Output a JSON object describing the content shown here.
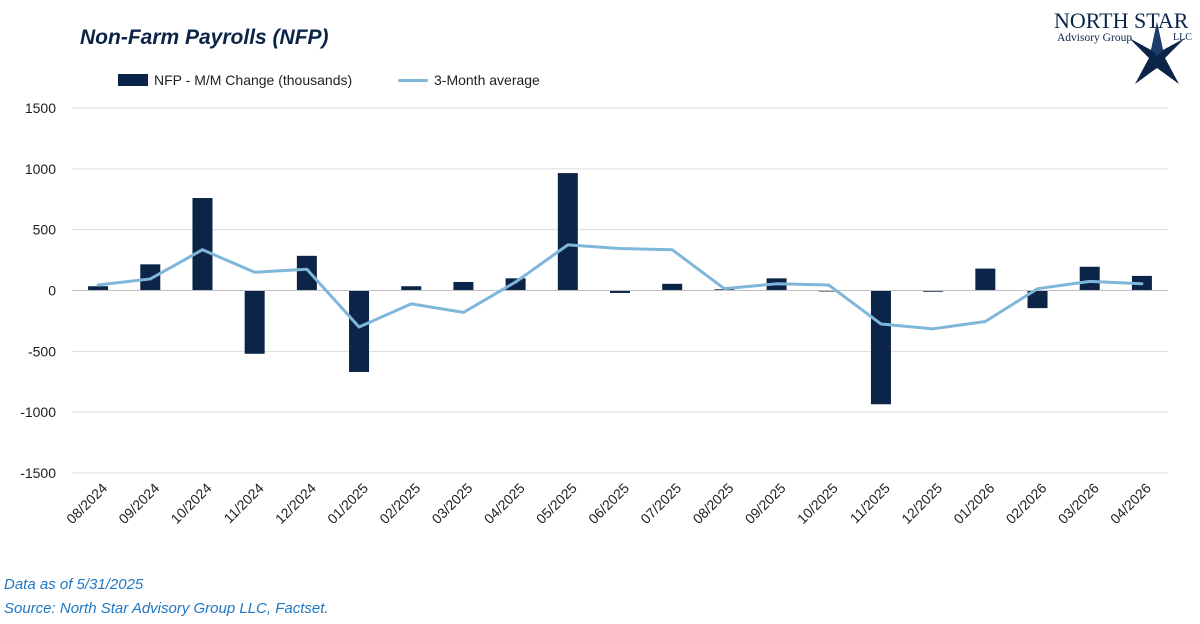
{
  "chart_data": {
    "type": "bar",
    "title": "Non-Farm Payrolls (NFP)",
    "categories": [
      "08/2024",
      "09/2024",
      "10/2024",
      "11/2024",
      "12/2024",
      "01/2025",
      "02/2025",
      "03/2025",
      "04/2025",
      "05/2025",
      "06/2025",
      "07/2025",
      "08/2025",
      "09/2025",
      "10/2025",
      "11/2025",
      "12/2025",
      "01/2026",
      "02/2026",
      "03/2026",
      "04/2026"
    ],
    "series": [
      {
        "name": "NFP - M/M Change (thousands)",
        "type": "bar",
        "color": "#0b2447",
        "values": [
          35,
          215,
          760,
          -520,
          285,
          -670,
          35,
          70,
          100,
          965,
          -20,
          55,
          10,
          100,
          0,
          -935,
          -10,
          180,
          -145,
          195,
          120
        ]
      },
      {
        "name": "3-Month average",
        "type": "line",
        "color": "#7fb7da",
        "values": [
          45,
          95,
          335,
          150,
          175,
          -300,
          -110,
          -180,
          70,
          375,
          345,
          335,
          15,
          55,
          45,
          -275,
          -315,
          -255,
          15,
          75,
          55
        ]
      }
    ],
    "ylim": [
      -1500,
      1500
    ],
    "yticks": [
      1500,
      1000,
      500,
      0,
      -500,
      -1000,
      -1500
    ],
    "grid": true,
    "legend": "top-left",
    "xlabel": "",
    "ylabel": ""
  },
  "logo": {
    "line1": "NORTH STAR",
    "line2": "Advisory Group",
    "line3": "LLC",
    "color": "#0b2447"
  },
  "footnotes": {
    "data_as_of": "Data as of 5/31/2025",
    "source": "Source: North Star Advisory Group LLC, Factset."
  }
}
